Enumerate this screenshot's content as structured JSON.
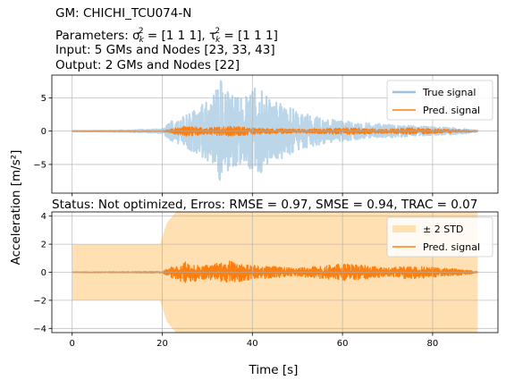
{
  "header": {
    "line1": "GM: CHICHI_TCU074-N",
    "line2_prefix": "Parameters: σ",
    "line2_sub1": "k",
    "line2_sup1": "2",
    "line2_mid": " = [1 1 1], τ",
    "line2_sub2": "k",
    "line2_sup2": "2",
    "line2_suffix": " = [1 1 1]",
    "line3": "Input: 5 GMs and Nodes [23, 33, 43]",
    "line4": "Output: 2 GMs and Nodes [22]"
  },
  "status_line": "Status: Not optimized, Erros: RMSE = 0.97, SMSE = 0.94, TRAC = 0.07",
  "chart_data": [
    {
      "type": "line",
      "panel": "top",
      "x_range": [
        0,
        90
      ],
      "xlim": [
        -4.5,
        94.5
      ],
      "ylim": [
        -9.3,
        8.4
      ],
      "yticks": [
        -5,
        0,
        5
      ],
      "xticks": [
        0,
        20,
        40,
        60,
        80
      ],
      "grid": true,
      "legend": "top-right",
      "series": [
        {
          "name": "True signal",
          "color": "#1f77b4",
          "opacity": 0.3,
          "envelope": [
            [
              0,
              0.05
            ],
            [
              10,
              0.1
            ],
            [
              20,
              0.3
            ],
            [
              22,
              1.5
            ],
            [
              25,
              2.5
            ],
            [
              28,
              3.5
            ],
            [
              31,
              5.0
            ],
            [
              33,
              8.0
            ],
            [
              35,
              5.5
            ],
            [
              38,
              5.0
            ],
            [
              41,
              7.0
            ],
            [
              44,
              4.5
            ],
            [
              47,
              4.0
            ],
            [
              50,
              3.0
            ],
            [
              55,
              2.0
            ],
            [
              60,
              1.5
            ],
            [
              65,
              1.2
            ],
            [
              70,
              1.0
            ],
            [
              75,
              0.8
            ],
            [
              80,
              0.6
            ],
            [
              85,
              0.5
            ],
            [
              90,
              0.1
            ]
          ]
        },
        {
          "name": "Pred. signal",
          "color": "#ff7f0e",
          "envelope": [
            [
              0,
              0.02
            ],
            [
              20,
              0.05
            ],
            [
              22,
              0.35
            ],
            [
              25,
              0.8
            ],
            [
              30,
              0.5
            ],
            [
              35,
              0.8
            ],
            [
              40,
              0.5
            ],
            [
              45,
              0.4
            ],
            [
              50,
              0.3
            ],
            [
              60,
              0.5
            ],
            [
              65,
              0.45
            ],
            [
              70,
              0.3
            ],
            [
              75,
              0.5
            ],
            [
              80,
              0.35
            ],
            [
              85,
              0.25
            ],
            [
              90,
              0.05
            ]
          ]
        }
      ]
    },
    {
      "type": "area",
      "panel": "bottom",
      "x_range": [
        0,
        90
      ],
      "xlim": [
        -4.5,
        94.5
      ],
      "ylim": [
        -4.3,
        4.3
      ],
      "yticks": [
        -4,
        -2,
        0,
        2,
        4
      ],
      "xticks": [
        0,
        20,
        40,
        60,
        80
      ],
      "xlabel": "Time [s]",
      "ylabel": "Acceleration [m/s²]",
      "grid": true,
      "legend": "top-right",
      "series": [
        {
          "name": "± 2 STD",
          "color": "#ffe0b2",
          "envelope": [
            [
              0,
              2.0
            ],
            [
              19.5,
              2.0
            ],
            [
              21,
              3.5
            ],
            [
              23,
              4.3
            ],
            [
              90,
              4.3
            ]
          ]
        },
        {
          "name": "Pred. signal",
          "color": "#ff7f0e",
          "envelope": [
            [
              0,
              0.02
            ],
            [
              20,
              0.05
            ],
            [
              22,
              0.4
            ],
            [
              25,
              0.8
            ],
            [
              30,
              0.5
            ],
            [
              35,
              0.8
            ],
            [
              40,
              0.5
            ],
            [
              45,
              0.4
            ],
            [
              50,
              0.3
            ],
            [
              60,
              0.6
            ],
            [
              65,
              0.5
            ],
            [
              70,
              0.3
            ],
            [
              75,
              0.5
            ],
            [
              80,
              0.35
            ],
            [
              85,
              0.25
            ],
            [
              90,
              0.05
            ]
          ]
        }
      ]
    }
  ]
}
